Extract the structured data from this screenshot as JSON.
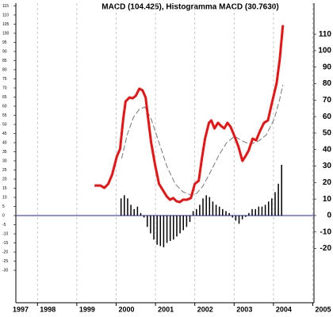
{
  "chart_data": {
    "type": "line",
    "title": "MACD (104.425), Histogramma MACD (30.7630)",
    "xlim": [
      1997.45,
      2005.03
    ],
    "xticks": [
      1997,
      1998,
      1999,
      2000,
      2001,
      2002,
      2003,
      2004,
      2005
    ],
    "ylim": [
      -47.8,
      116.5
    ],
    "yticks": [
      -30,
      -25,
      -20,
      -15,
      -10,
      -5,
      0,
      5,
      10,
      15,
      20,
      25,
      30,
      35,
      40,
      45,
      50,
      55,
      60,
      65,
      70,
      75,
      80,
      85,
      90,
      95,
      100,
      105,
      110,
      115
    ],
    "y2lim": [
      -52.9,
      128.8
    ],
    "y2ticks": [
      -20,
      -10,
      0,
      10,
      20,
      30,
      40,
      50,
      60,
      70,
      80,
      90,
      100,
      110
    ],
    "grid": true,
    "hline": {
      "value": 0,
      "color": "#4a4ad8"
    },
    "series": [
      {
        "style": "bar",
        "axis": "y2",
        "color": "#000000",
        "x": [
          2000.125,
          2000.208,
          2000.292,
          2000.375,
          2000.458,
          2000.542,
          2000.625,
          2000.708,
          2000.792,
          2000.875,
          2000.958,
          2001.042,
          2001.125,
          2001.208,
          2001.292,
          2001.375,
          2001.458,
          2001.542,
          2001.625,
          2001.708,
          2001.792,
          2001.875,
          2001.958,
          2002.042,
          2002.125,
          2002.208,
          2002.292,
          2002.375,
          2002.458,
          2002.542,
          2002.625,
          2002.708,
          2002.792,
          2002.875,
          2002.958,
          2003.042,
          2003.125,
          2003.208,
          2003.292,
          2003.375,
          2003.458,
          2003.542,
          2003.625,
          2003.708,
          2003.792,
          2003.875,
          2003.958,
          2004.042,
          2004.125,
          2004.208
        ],
        "values": [
          10.4,
          12.3,
          10.4,
          6.5,
          3.9,
          5.4,
          1.5,
          -1.2,
          -6.9,
          -10.8,
          -14.6,
          -17.7,
          -18.5,
          -19.3,
          -16.6,
          -15.4,
          -14.6,
          -12.7,
          -10.8,
          -8.9,
          -6.9,
          -3.9,
          2.7,
          3.9,
          6.5,
          10.4,
          12.3,
          11.2,
          8.5,
          6.5,
          5.4,
          3.9,
          2.7,
          1.5,
          -1.2,
          -3.1,
          -5,
          -2.3,
          -0.8,
          1.5,
          3.9,
          3.9,
          5.4,
          5.4,
          6.5,
          8.5,
          10.4,
          14.2,
          19.3,
          30.763
        ]
      },
      {
        "style": "line",
        "color": "#777777",
        "dashed": true,
        "x": [
          2000.14,
          2000.28,
          2000.44,
          2000.59,
          2000.73,
          2000.89,
          2001.09,
          2001.29,
          2001.5,
          2001.7,
          2001.9,
          2002.04,
          2002.2,
          2002.4,
          2002.61,
          2002.81,
          2003.01,
          2003.21,
          2003.41,
          2003.62,
          2003.82,
          2004.02,
          2004.16,
          2004.24
        ],
        "values": [
          31.3,
          44.3,
          53.9,
          58.3,
          59.6,
          53,
          40,
          27,
          17.4,
          13,
          11.3,
          12,
          16,
          24,
          33,
          40,
          43.5,
          40.9,
          39.1,
          40.9,
          44.3,
          53,
          63.9,
          71.7
        ]
      },
      {
        "style": "line",
        "color": "#ee1111",
        "dashed": false,
        "x": [
          1999.45,
          1999.6,
          1999.7,
          1999.8,
          1999.9,
          2000.02,
          2000.1,
          2000.18,
          2000.24,
          2000.34,
          2000.42,
          2000.5,
          2000.59,
          2000.67,
          2000.75,
          2000.81,
          2000.89,
          2000.99,
          2001.09,
          2001.19,
          2001.29,
          2001.37,
          2001.45,
          2001.54,
          2001.62,
          2001.7,
          2001.8,
          2001.9,
          2002.0,
          2002.1,
          2002.18,
          2002.26,
          2002.36,
          2002.42,
          2002.5,
          2002.59,
          2002.67,
          2002.75,
          2002.83,
          2002.91,
          2003.01,
          2003.11,
          2003.21,
          2003.29,
          2003.37,
          2003.47,
          2003.56,
          2003.66,
          2003.76,
          2003.86,
          2003.96,
          2004.08,
          2004.16,
          2004.24
        ],
        "values": [
          16.5,
          16.5,
          15.2,
          17.4,
          22.6,
          32.6,
          36.5,
          53,
          62.6,
          64.8,
          64.3,
          65.7,
          69.6,
          68.7,
          64.8,
          53.9,
          40,
          27.8,
          17.4,
          13.9,
          10.4,
          8.7,
          9.6,
          7.8,
          7.4,
          8.7,
          8.7,
          9.6,
          17.4,
          19.1,
          31.3,
          42.2,
          50.9,
          52.2,
          47.8,
          50.9,
          49.1,
          47.8,
          50.9,
          48.7,
          43.5,
          37.8,
          30,
          32.6,
          35.7,
          42.2,
          41.3,
          46.5,
          50.9,
          52.2,
          61.7,
          72.6,
          85.7,
          104.425
        ]
      }
    ]
  }
}
